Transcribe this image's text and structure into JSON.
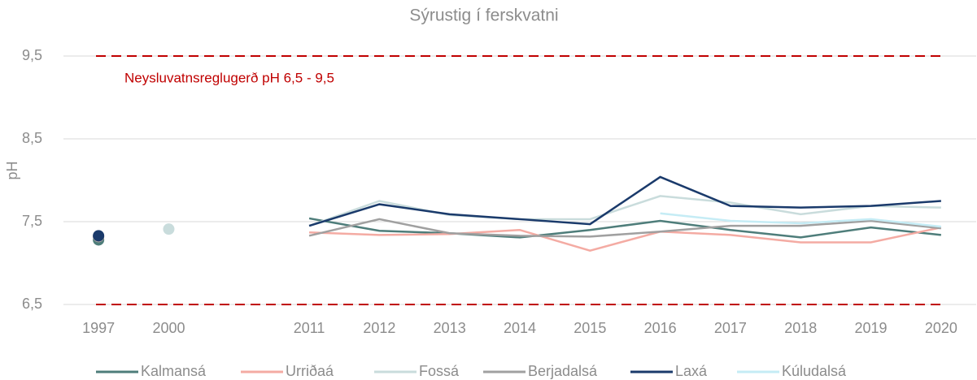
{
  "chart_data": {
    "type": "line",
    "title": "Sýrustig í ferskvatni",
    "y_label": "pH",
    "categories": [
      "1997",
      "2000",
      null,
      "2011",
      "2012",
      "2013",
      "2014",
      "2015",
      "2016",
      "2017",
      "2018",
      "2019",
      "2020"
    ],
    "ylim": [
      6.5,
      9.5
    ],
    "yticks": [
      {
        "value": 6.5,
        "label": "6,5"
      },
      {
        "value": 7.5,
        "label": "7,5"
      },
      {
        "value": 8.5,
        "label": "8,5"
      },
      {
        "value": 9.5,
        "label": "9,5"
      }
    ],
    "grid": true,
    "legend": "bottom",
    "reference_lines": [
      6.5,
      9.5
    ],
    "reference_color": "#c00000",
    "annotation": "Neysluvatnsreglugerð pH 6,5 - 9,5",
    "series": [
      {
        "name": "Kalmansá",
        "color": "#4e7d7a",
        "values": [
          7.28,
          null,
          null,
          7.54,
          7.39,
          7.36,
          7.31,
          7.4,
          7.51,
          7.4,
          7.31,
          7.43,
          7.34
        ]
      },
      {
        "name": "Urriðaá",
        "color": "#f4aba3",
        "values": [
          7.32,
          null,
          null,
          7.37,
          7.34,
          7.35,
          7.4,
          7.15,
          7.38,
          7.34,
          7.25,
          7.25,
          7.43
        ]
      },
      {
        "name": "Fossá",
        "color": "#c9dcdc",
        "values": [
          null,
          7.41,
          null,
          7.45,
          7.75,
          7.58,
          7.53,
          7.53,
          7.81,
          7.73,
          7.59,
          7.69,
          7.67
        ]
      },
      {
        "name": "Berjadalsá",
        "color": "#a0a0a0",
        "values": [
          7.32,
          null,
          null,
          7.33,
          7.53,
          7.36,
          7.33,
          7.32,
          7.38,
          7.45,
          7.45,
          7.51,
          7.42
        ]
      },
      {
        "name": "Laxá",
        "color": "#1a3a6b",
        "values": [
          7.33,
          null,
          null,
          7.45,
          7.71,
          7.59,
          7.53,
          7.47,
          8.04,
          7.69,
          7.67,
          7.69,
          7.75
        ]
      },
      {
        "name": "Kúludalsá",
        "color": "#c5ecf5",
        "values": [
          null,
          null,
          null,
          null,
          null,
          null,
          null,
          null,
          7.6,
          7.51,
          7.48,
          7.53,
          7.44
        ]
      }
    ]
  }
}
